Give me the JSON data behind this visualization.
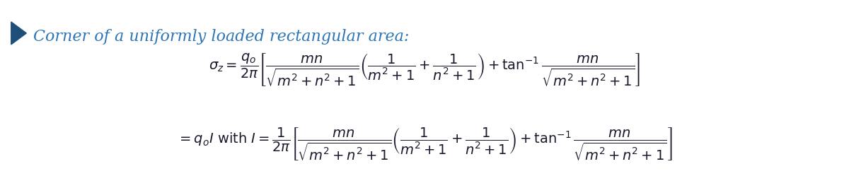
{
  "title_text": "Corner of a uniformly loaded rectangular area:",
  "title_color": "#2e75b6",
  "triangle_color": "#1f4e79",
  "formula1": "$\\sigma_z = \\dfrac{q_o}{2\\pi} \\left[ \\dfrac{mn}{\\sqrt{m^2+n^2+1}} \\left( \\dfrac{1}{m^2+1} + \\dfrac{1}{n^2+1} \\right) + \\tan^{-1} \\dfrac{mn}{\\sqrt{m^2+n^2+1}} \\right]$",
  "formula2": "$= q_o I \\text{ with } I = \\dfrac{1}{2\\pi} \\left[ \\dfrac{mn}{\\sqrt{m^2+n^2+1}} \\left( \\dfrac{1}{m^2+1} + \\dfrac{1}{n^2+1} \\right) + \\tan^{-1} \\dfrac{mn}{\\sqrt{m^2+n^2+1}} \\right]$",
  "formula_color": "#1a1a2e",
  "bg_color": "#ffffff",
  "fig_width": 12.0,
  "fig_height": 2.49,
  "dpi": 100
}
